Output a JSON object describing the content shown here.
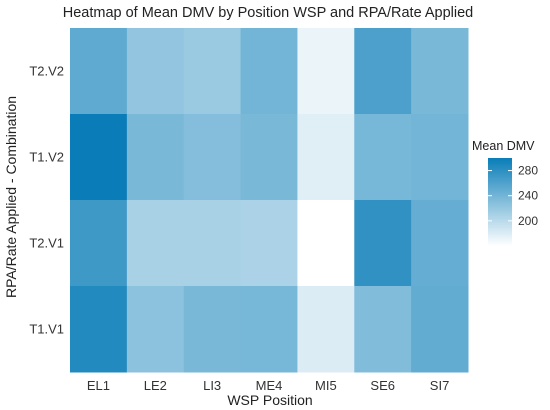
{
  "chart_data": {
    "type": "heatmap",
    "title": "Heatmap of Mean DMV by Position WSP and RPA/Rate Applied",
    "xlabel": "WSP Position",
    "ylabel": "RPA/Rate Applied - Combination",
    "x_categories": [
      "EL1",
      "LE2",
      "LI3",
      "ME4",
      "MI5",
      "SE6",
      "SI7"
    ],
    "y_categories": [
      "T2.V2",
      "T1.V2",
      "T2.V1",
      "T1.V1"
    ],
    "values": [
      [
        252,
        222,
        218,
        240,
        172,
        262,
        236
      ],
      [
        300,
        236,
        230,
        236,
        178,
        238,
        240
      ],
      [
        270,
        210,
        210,
        208,
        160,
        278,
        248
      ],
      [
        286,
        226,
        236,
        238,
        180,
        232,
        250
      ]
    ],
    "legend": {
      "title": "Mean DMV",
      "ticks": [
        200,
        240,
        280
      ],
      "min": 160,
      "max": 300,
      "placement": "right"
    },
    "color_low": "#ffffff",
    "color_high": "#0a7db8"
  }
}
